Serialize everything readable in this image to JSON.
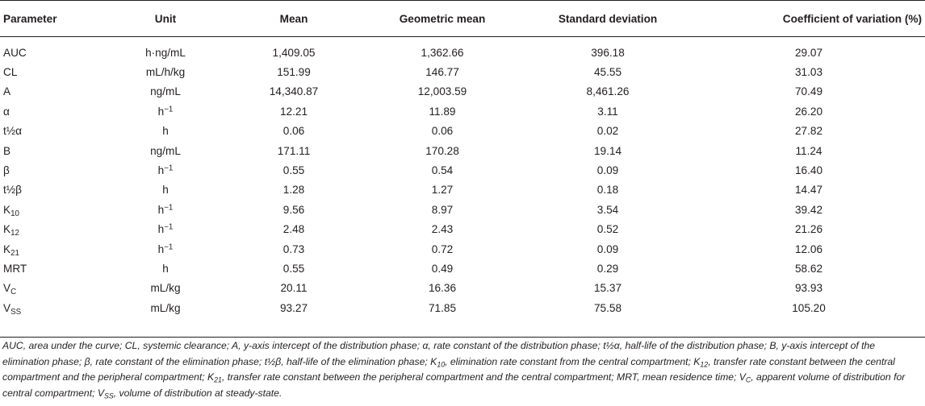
{
  "table": {
    "headers": [
      "Parameter",
      "Unit",
      "Mean",
      "Geometric mean",
      "Standard deviation",
      "Coefficient of variation (%)"
    ],
    "rows": [
      {
        "name": "AUC",
        "name_sub": "",
        "unit": "h·ng/mL",
        "unit_sup": "",
        "mean": "1,409.05",
        "geomean": "1,362.66",
        "sd": "396.18",
        "cv": "29.07"
      },
      {
        "name": "CL",
        "name_sub": "",
        "unit": "mL/h/kg",
        "unit_sup": "",
        "mean": "151.99",
        "geomean": "146.77",
        "sd": "45.55",
        "cv": "31.03"
      },
      {
        "name": "A",
        "name_sub": "",
        "unit": "ng/mL",
        "unit_sup": "",
        "mean": "14,340.87",
        "geomean": "12,003.59",
        "sd": "8,461.26",
        "cv": "70.49"
      },
      {
        "name": "α",
        "name_sub": "",
        "unit": "h",
        "unit_sup": "−1",
        "mean": "12.21",
        "geomean": "11.89",
        "sd": "3.11",
        "cv": "26.20"
      },
      {
        "name": "t½α",
        "name_sub": "",
        "unit": "h",
        "unit_sup": "",
        "mean": "0.06",
        "geomean": "0.06",
        "sd": "0.02",
        "cv": "27.82"
      },
      {
        "name": "B",
        "name_sub": "",
        "unit": "ng/mL",
        "unit_sup": "",
        "mean": "171.11",
        "geomean": "170.28",
        "sd": "19.14",
        "cv": "11.24"
      },
      {
        "name": "β",
        "name_sub": "",
        "unit": "h",
        "unit_sup": "−1",
        "mean": "0.55",
        "geomean": "0.54",
        "sd": "0.09",
        "cv": "16.40"
      },
      {
        "name": "t½β",
        "name_sub": "",
        "unit": "h",
        "unit_sup": "",
        "mean": "1.28",
        "geomean": "1.27",
        "sd": "0.18",
        "cv": "14.47"
      },
      {
        "name": "K",
        "name_sub": "10",
        "unit": "h",
        "unit_sup": "−1",
        "mean": "9.56",
        "geomean": "8.97",
        "sd": "3.54",
        "cv": "39.42"
      },
      {
        "name": "K",
        "name_sub": "12",
        "unit": "h",
        "unit_sup": "−1",
        "mean": "2.48",
        "geomean": "2.43",
        "sd": "0.52",
        "cv": "21.26"
      },
      {
        "name": "K",
        "name_sub": "21",
        "unit": "h",
        "unit_sup": "−1",
        "mean": "0.73",
        "geomean": "0.72",
        "sd": "0.09",
        "cv": "12.06"
      },
      {
        "name": "MRT",
        "name_sub": "",
        "unit": "h",
        "unit_sup": "",
        "mean": "0.55",
        "geomean": "0.49",
        "sd": "0.29",
        "cv": "58.62"
      },
      {
        "name": "V",
        "name_sub": "C",
        "unit": "mL/kg",
        "unit_sup": "",
        "mean": "20.11",
        "geomean": "16.36",
        "sd": "15.37",
        "cv": "93.93"
      },
      {
        "name": "V",
        "name_sub": "SS",
        "unit": "mL/kg",
        "unit_sup": "",
        "mean": "93.27",
        "geomean": "71.85",
        "sd": "75.58",
        "cv": "105.20"
      }
    ]
  },
  "footnote": [
    {
      "t": "AUC, area under the curve; CL, systemic clearance; A, y-axis intercept of the distribution phase; α, rate constant of the distribution phase; t½α, half-life of the distribution phase; B, y-axis intercept of the elimination phase; β, rate constant of the elimination phase; t½β, half-life of the elimination phase; K"
    },
    {
      "sub": "10"
    },
    {
      "t": ", elimination rate constant from the central compartment; K"
    },
    {
      "sub": "12"
    },
    {
      "t": ", transfer rate constant between the central compartment and the peripheral compartment; K"
    },
    {
      "sub": "21"
    },
    {
      "t": ", transfer rate constant between the peripheral compartment and the central compartment; MRT, mean residence time; V"
    },
    {
      "sub": "C"
    },
    {
      "t": ", apparent volume of distribution for central compartment; V"
    },
    {
      "sub": "SS"
    },
    {
      "t": ", volume of distribution at steady-state."
    }
  ]
}
